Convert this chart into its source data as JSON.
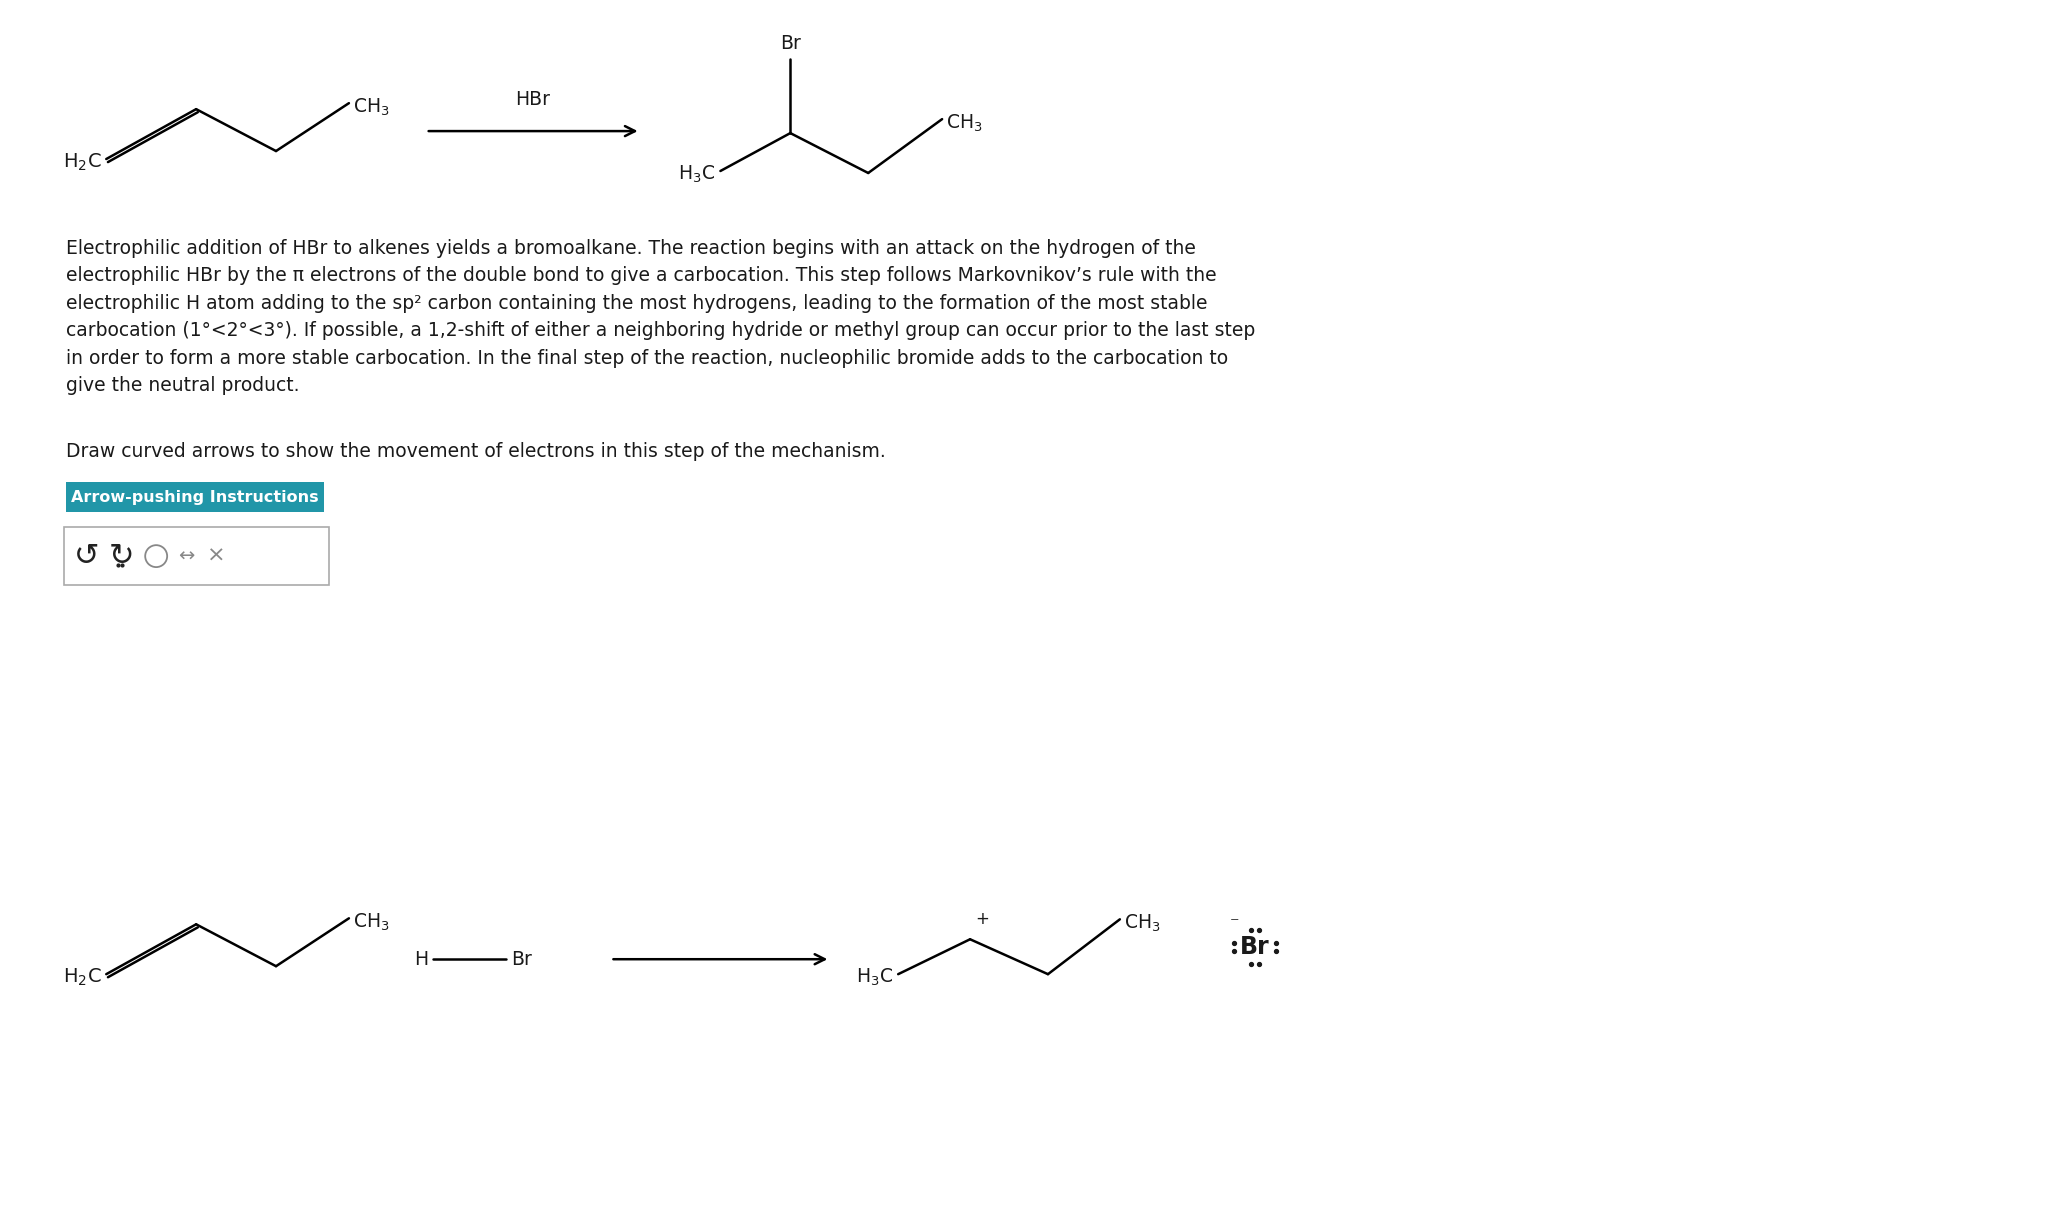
{
  "bg_color": "#ffffff",
  "text_color": "#1a1a1a",
  "button_bg": "#2196a8",
  "button_text_color": "#ffffff",
  "button_text": "Arrow-pushing Instructions",
  "instruction_text": "Draw curved arrows to show the movement of electrons in this step of the mechanism.",
  "body_line1": "Electrophilic addition of HBr to alkenes yields a bromoalkane. The reaction begins with an attack on the hydrogen of the",
  "body_line2": "electrophilic HBr by the π electrons of the double bond to give a carbocation. This step follows Markovnikov’s rule with the",
  "body_line3": "electrophilic H atom adding to the sp² carbon containing the most hydrogens, leading to the formation of the most stable",
  "body_line4": "carbocation (1°<2°<3°). If possible, a 1,2-shift of either a neighboring hydride or methyl group can occur prior to the last step",
  "body_line5": "in order to form a more stable carbocation. In the final step of the reaction, nucleophilic bromide adds to the carbocation to",
  "body_line6": "give the neutral product.",
  "font_body": 13.5,
  "font_chem": 13.5
}
